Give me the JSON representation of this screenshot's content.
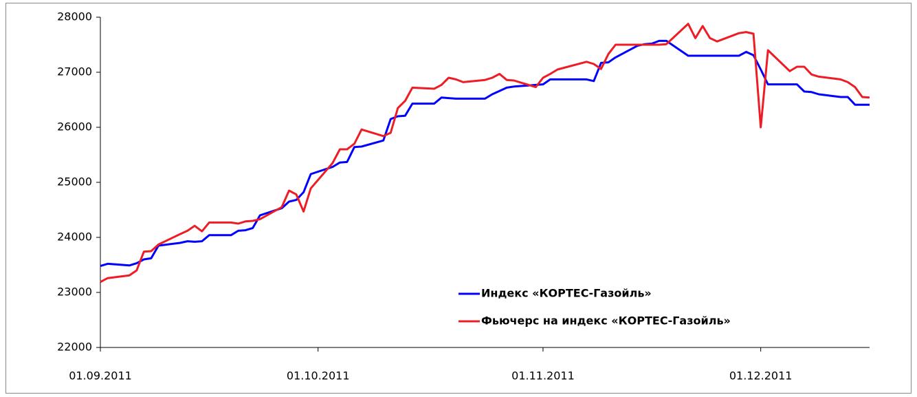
{
  "chart_data": {
    "type": "line",
    "x": [
      "2011-09-01",
      "2011-09-02",
      "2011-09-05",
      "2011-09-06",
      "2011-09-07",
      "2011-09-08",
      "2011-09-09",
      "2011-09-12",
      "2011-09-13",
      "2011-09-14",
      "2011-09-15",
      "2011-09-16",
      "2011-09-19",
      "2011-09-20",
      "2011-09-21",
      "2011-09-22",
      "2011-09-23",
      "2011-09-26",
      "2011-09-27",
      "2011-09-28",
      "2011-09-29",
      "2011-09-30",
      "2011-10-03",
      "2011-10-04",
      "2011-10-05",
      "2011-10-06",
      "2011-10-07",
      "2011-10-10",
      "2011-10-11",
      "2011-10-12",
      "2011-10-13",
      "2011-10-14",
      "2011-10-17",
      "2011-10-18",
      "2011-10-19",
      "2011-10-20",
      "2011-10-21",
      "2011-10-24",
      "2011-10-25",
      "2011-10-26",
      "2011-10-27",
      "2011-10-28",
      "2011-10-31",
      "2011-11-01",
      "2011-11-02",
      "2011-11-03",
      "2011-11-07",
      "2011-11-08",
      "2011-11-09",
      "2011-11-10",
      "2011-11-11",
      "2011-11-14",
      "2011-11-15",
      "2011-11-16",
      "2011-11-17",
      "2011-11-18",
      "2011-11-21",
      "2011-11-22",
      "2011-11-23",
      "2011-11-24",
      "2011-11-25",
      "2011-11-28",
      "2011-11-29",
      "2011-11-30",
      "2011-12-01",
      "2011-12-02",
      "2011-12-05",
      "2011-12-06",
      "2011-12-07",
      "2011-12-08",
      "2011-12-09",
      "2011-12-12",
      "2011-12-13",
      "2011-12-14",
      "2011-12-15",
      "2011-12-16"
    ],
    "series": [
      {
        "name": "Индекс «КОРТЕС-Газойль»",
        "color": "#0000ff",
        "values": [
          23480,
          23520,
          23490,
          23530,
          23600,
          23620,
          23850,
          23900,
          23930,
          23920,
          23930,
          24040,
          24040,
          24120,
          24130,
          24170,
          24400,
          24530,
          24650,
          24680,
          24820,
          25150,
          25280,
          25360,
          25370,
          25640,
          25650,
          25760,
          26150,
          26200,
          26210,
          26430,
          26430,
          26540,
          26530,
          26520,
          26520,
          26520,
          26600,
          26660,
          26720,
          26740,
          26770,
          26780,
          26870,
          26870,
          26870,
          26840,
          27170,
          27180,
          27270,
          27480,
          27510,
          27520,
          27570,
          27570,
          27300,
          27300,
          27300,
          27300,
          27300,
          27300,
          27370,
          27310,
          27050,
          26780,
          26780,
          26780,
          26650,
          26640,
          26600,
          26550,
          26550,
          26410,
          26410,
          26410
        ]
      },
      {
        "name": "Фьючерс на индекс «КОРТЕС-Газойль»",
        "color": "#ee1c24",
        "values": [
          23190,
          23260,
          23310,
          23400,
          23740,
          23750,
          23870,
          24060,
          24120,
          24210,
          24110,
          24270,
          24270,
          24250,
          24290,
          24300,
          24330,
          24550,
          24850,
          24780,
          24470,
          24890,
          25350,
          25600,
          25600,
          25700,
          25960,
          25840,
          25900,
          26350,
          26480,
          26720,
          26700,
          26770,
          26900,
          26870,
          26820,
          26860,
          26900,
          26970,
          26860,
          26850,
          26730,
          26900,
          26970,
          27050,
          27190,
          27150,
          27060,
          27330,
          27500,
          27500,
          27500,
          27500,
          27500,
          27510,
          27880,
          27620,
          27840,
          27620,
          27560,
          27710,
          27730,
          27700,
          26000,
          27400,
          27020,
          27100,
          27100,
          26960,
          26920,
          26870,
          26820,
          26730,
          26550,
          26540
        ]
      }
    ],
    "xlim": [
      "2011-09-01",
      "2011-12-16"
    ],
    "xticks": [
      {
        "value": "2011-09-01",
        "label": "01.09.2011"
      },
      {
        "value": "2011-10-01",
        "label": "01.10.2011"
      },
      {
        "value": "2011-11-01",
        "label": "01.11.2011"
      },
      {
        "value": "2011-12-01",
        "label": "01.12.2011"
      }
    ],
    "ylim": [
      22000,
      28000
    ],
    "yticks": [
      22000,
      23000,
      24000,
      25000,
      26000,
      27000,
      28000
    ],
    "grid": false
  }
}
